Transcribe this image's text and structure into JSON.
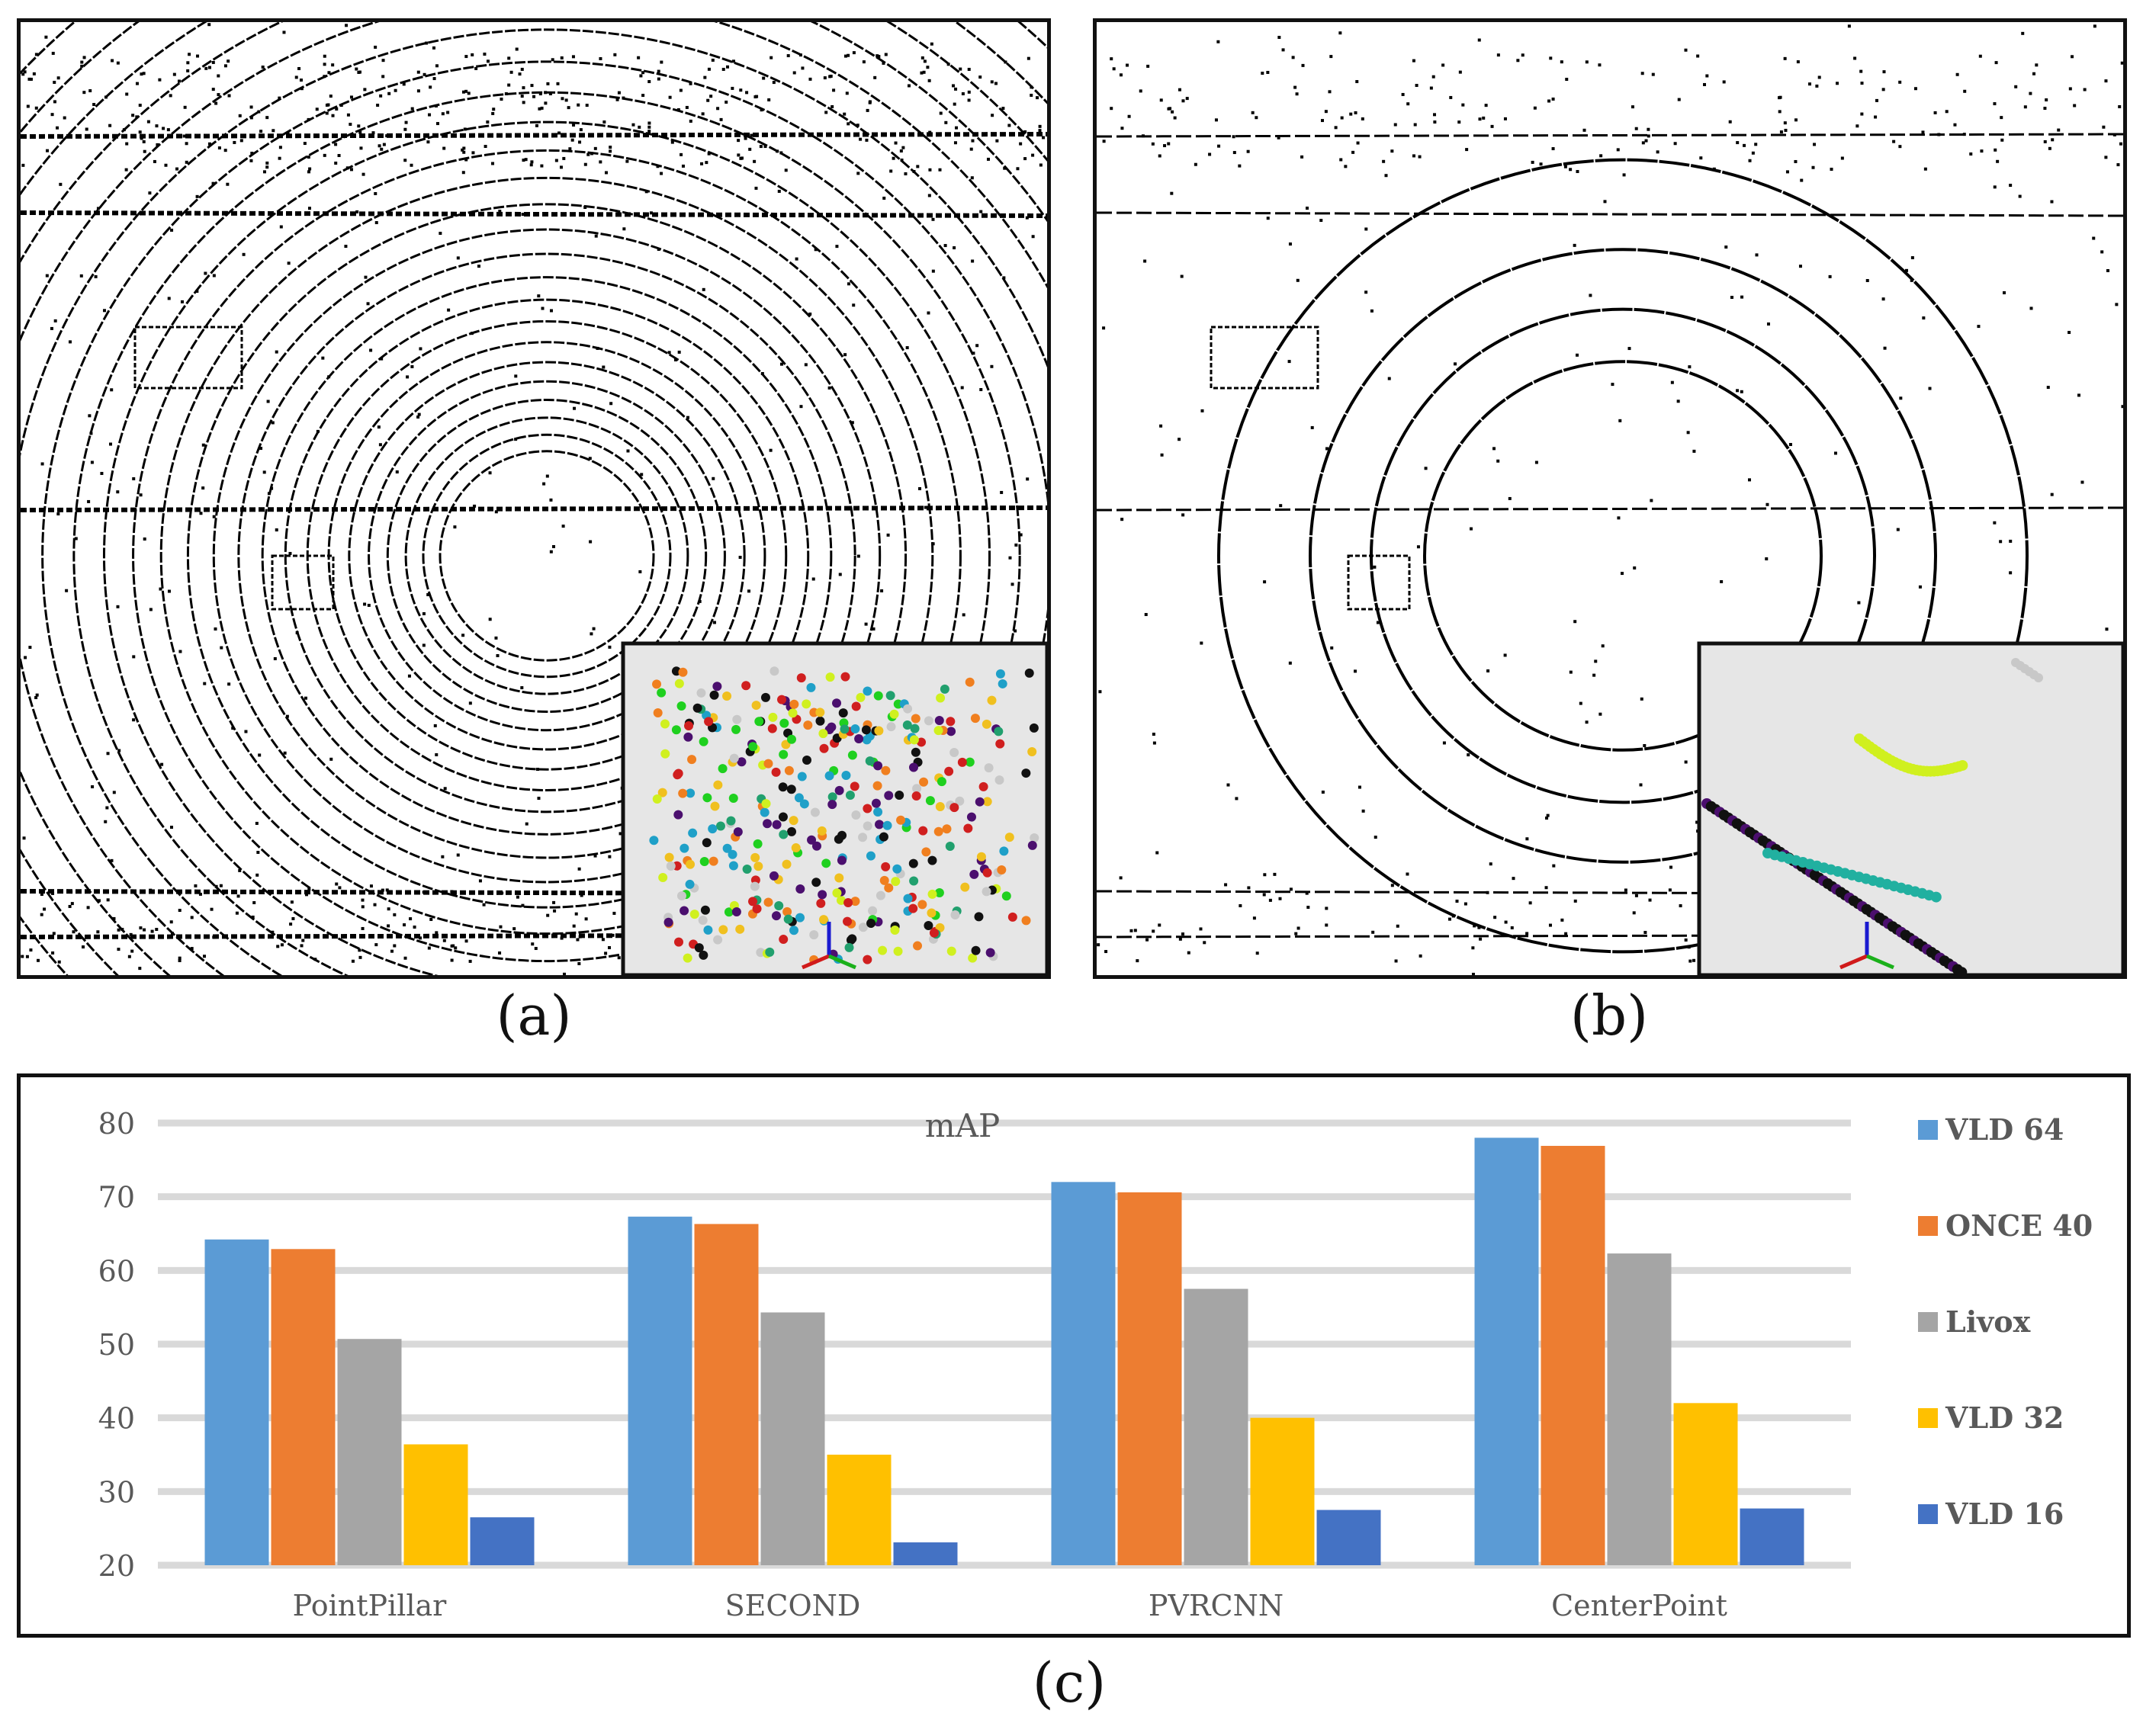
{
  "captions": {
    "a": "(a)",
    "b": "(b)",
    "c": "(c)"
  },
  "colors": {
    "vld64": "#5b9bd5",
    "once40": "#ed7d31",
    "livox": "#a5a5a5",
    "vld32": "#ffc000",
    "vld16": "#4472c4",
    "grid": "#d9d9d9",
    "inset_bg": "#e6e6e6"
  },
  "chart_data": {
    "type": "bar",
    "title": "mAP",
    "xlabel": "",
    "ylabel": "",
    "categories": [
      "PointPillar",
      "SECOND",
      "PVRCNN",
      "CenterPoint"
    ],
    "series": [
      {
        "name": "VLD 64",
        "color": "#5b9bd5",
        "values": [
          64.2,
          67.3,
          72.0,
          78.0
        ]
      },
      {
        "name": "ONCE 40",
        "color": "#ed7d31",
        "values": [
          62.9,
          66.3,
          70.6,
          76.9
        ]
      },
      {
        "name": "Livox",
        "color": "#a5a5a5",
        "values": [
          50.7,
          54.3,
          57.5,
          62.3
        ]
      },
      {
        "name": "VLD 32",
        "color": "#ffc000",
        "values": [
          36.4,
          35.0,
          40.0,
          42.0
        ]
      },
      {
        "name": "VLD 16",
        "color": "#4472c4",
        "values": [
          26.5,
          23.1,
          27.5,
          27.7
        ]
      }
    ],
    "ylim": [
      20,
      80
    ],
    "yticks": [
      20,
      30,
      40,
      50,
      60,
      70,
      80
    ],
    "grid": true,
    "legend": "right"
  }
}
